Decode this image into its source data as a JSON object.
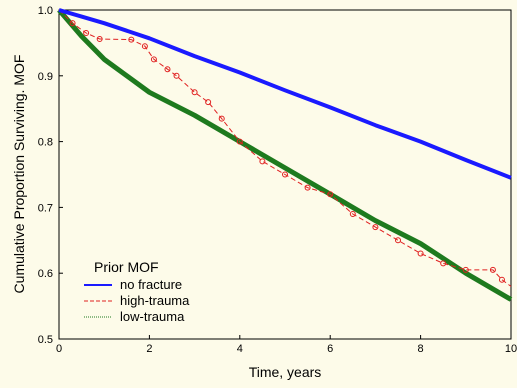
{
  "chart_data": {
    "type": "line",
    "xlabel": "Time, years",
    "ylabel": "Cumulative Proportion Surviving. MOF",
    "xlim": [
      0,
      10
    ],
    "ylim": [
      0.5,
      1.0
    ],
    "x_ticks": [
      "0",
      "2",
      "4",
      "6",
      "8",
      "10"
    ],
    "y_ticks": [
      "0.5",
      "0.6",
      "0.7",
      "0.8",
      "0.9",
      "1.0"
    ],
    "grid": false,
    "legend": {
      "title": "Prior MOF",
      "position": "bottom-left"
    },
    "series": [
      {
        "name": "no fracture",
        "color": "#1a1aff",
        "style": "solid",
        "x": [
          0,
          0.5,
          1,
          2,
          3,
          4,
          5,
          6,
          7,
          8,
          9,
          10
        ],
        "y": [
          1.0,
          0.99,
          0.98,
          0.957,
          0.93,
          0.905,
          0.878,
          0.852,
          0.825,
          0.8,
          0.772,
          0.745
        ]
      },
      {
        "name": "high-trauma",
        "color": "#e02020",
        "style": "dashed",
        "x": [
          0,
          0.3,
          0.6,
          0.9,
          1.6,
          1.9,
          2.1,
          2.4,
          2.6,
          3.0,
          3.3,
          3.6,
          4.0,
          4.5,
          5.0,
          5.5,
          6.0,
          6.5,
          7.0,
          7.5,
          8.0,
          8.5,
          9.0,
          9.6,
          9.8,
          10
        ],
        "y": [
          1.0,
          0.98,
          0.965,
          0.956,
          0.955,
          0.945,
          0.925,
          0.91,
          0.9,
          0.875,
          0.86,
          0.835,
          0.8,
          0.77,
          0.75,
          0.73,
          0.72,
          0.69,
          0.67,
          0.65,
          0.63,
          0.615,
          0.605,
          0.605,
          0.59,
          0.58
        ]
      },
      {
        "name": "low-trauma",
        "color": "#1e7a1e",
        "style": "dotted",
        "x": [
          0,
          0.5,
          1,
          2,
          3,
          4,
          5,
          6,
          7,
          8,
          9,
          10
        ],
        "y": [
          1.0,
          0.96,
          0.925,
          0.875,
          0.84,
          0.8,
          0.76,
          0.72,
          0.68,
          0.645,
          0.6,
          0.56
        ]
      }
    ]
  }
}
